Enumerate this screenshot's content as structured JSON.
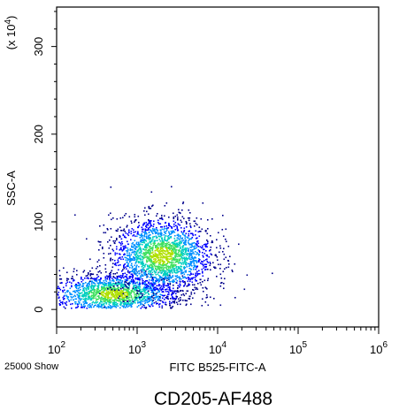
{
  "chart_data": {
    "type": "scatter",
    "style": "density-dot-plot",
    "x_axis": {
      "label": "FITC B525-FITC-A",
      "scale": "log",
      "range": [
        100,
        1000000
      ],
      "ticks": [
        {
          "base": "10",
          "exp": "2",
          "value": 100
        },
        {
          "base": "10",
          "exp": "3",
          "value": 1000
        },
        {
          "base": "10",
          "exp": "4",
          "value": 10000
        },
        {
          "base": "10",
          "exp": "5",
          "value": 100000
        },
        {
          "base": "10",
          "exp": "6",
          "value": 1000000
        }
      ]
    },
    "y_axis": {
      "label": "SSC-A",
      "scale": "linear",
      "multiplier_label": "(x 10",
      "multiplier_exp": "4",
      "multiplier_close": ")",
      "range": [
        -20,
        345
      ],
      "ticks": [
        {
          "label": "0",
          "value": 0
        },
        {
          "label": "100",
          "value": 100
        },
        {
          "label": "200",
          "value": 200
        },
        {
          "label": "300",
          "value": 300
        }
      ]
    },
    "events_shown": "25000 Show",
    "caption": "CD205-AF488",
    "density_colors": [
      "#00008b",
      "#0000ff",
      "#0090ff",
      "#00cfc0",
      "#40e060",
      "#b0e000"
    ],
    "populations": [
      {
        "x_center": 500,
        "y_center": 18,
        "x_spread_log": 0.42,
        "y_spread": 12,
        "count": 1700
      },
      {
        "x_center": 2000,
        "y_center": 62,
        "x_spread_log": 0.32,
        "y_spread": 22,
        "count": 2100
      }
    ],
    "grid": false,
    "legend": "none"
  }
}
